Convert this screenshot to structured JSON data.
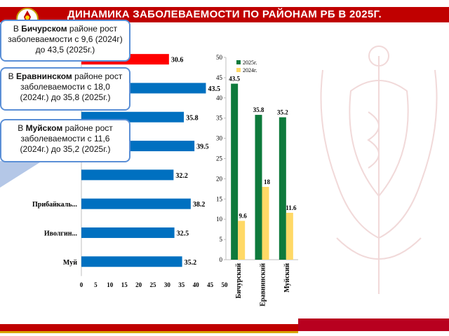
{
  "title": "ДИНАМИКА ЗАБОЛЕВАЕМОСТИ  ПО РАЙОНАМ РБ В 2025Г.",
  "colors": {
    "title_bar": "#c00000",
    "bar_default": "#0070c0",
    "bar_highlight": "#ff0000",
    "series_2025": "#0e7a3c",
    "series_2024": "#ffd966",
    "callout_border": "#5b8fd6"
  },
  "callouts": [
    {
      "prefix": "В ",
      "bold": "Бичурском",
      "suffix": " районе рост заболеваемости с 9,6 (2024г) до 43,5 (2025г.)"
    },
    {
      "prefix": "В ",
      "bold": "Еравнинском",
      "suffix": " районе рост заболеваемости с 18,0 (2024г.) до 35,8 (2025г.)"
    },
    {
      "prefix": "В ",
      "bold": "Муйском",
      "suffix": " районе рост заболеваемости с 11,6 (2024г.) до 35,2 (2025г.)"
    }
  ],
  "chart_data": [
    {
      "type": "bar",
      "orientation": "horizontal",
      "categories": [
        "",
        "",
        "",
        "",
        "",
        "Прибайкаль...",
        "Иволгин...",
        "Муй"
      ],
      "values": [
        30.6,
        43.5,
        35.8,
        39.5,
        32.2,
        38.2,
        32.5,
        35.2
      ],
      "value_labels": [
        "30.6",
        "43.5",
        "35.8",
        "39.5",
        "32.2",
        "38.2",
        "32.5",
        "35.2"
      ],
      "highlight_index": 0,
      "xlim": [
        0,
        50
      ],
      "xticks": [
        "0",
        "5",
        "10",
        "15",
        "20",
        "25",
        "30",
        "35",
        "40",
        "45",
        "50"
      ]
    },
    {
      "type": "bar",
      "categories": [
        "Бичурский",
        "Еравнинский",
        "Муйский"
      ],
      "series": [
        {
          "name": "2025г.",
          "values": [
            43.5,
            35.8,
            35.2
          ],
          "labels": [
            "43.5",
            "35.8",
            "35.2"
          ]
        },
        {
          "name": "2024г.",
          "values": [
            9.6,
            18,
            11.6
          ],
          "labels": [
            "9.6",
            "18",
            "11.6"
          ]
        }
      ],
      "ylim": [
        0,
        50
      ],
      "yticks": [
        "0",
        "5",
        "10",
        "15",
        "20",
        "25",
        "30",
        "35",
        "40",
        "45",
        "50"
      ],
      "legend": "top-right",
      "grid": false
    }
  ]
}
